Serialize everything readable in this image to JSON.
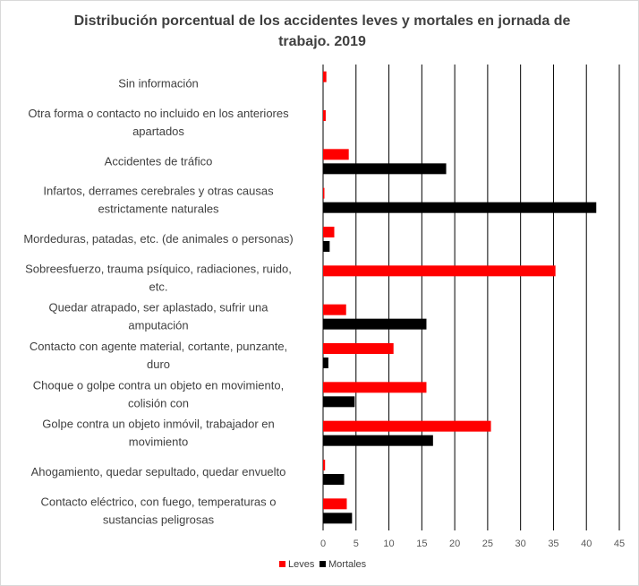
{
  "chart_data": {
    "type": "bar",
    "orientation": "horizontal",
    "title": "Distribución porcentual de los accidentes leves y mortales en jornada de trabajo. 2019",
    "categories": [
      [
        "Sin información"
      ],
      [
        "Otra forma o contacto no incluido en los anteriores",
        "apartados"
      ],
      [
        "Accidentes de tráfico"
      ],
      [
        "Infartos, derrames cerebrales y otras causas",
        "estrictamente naturales"
      ],
      [
        "Mordeduras, patadas, etc. (de animales o personas)"
      ],
      [
        "Sobreesfuerzo, trauma psíquico, radiaciones, ruido,",
        "etc."
      ],
      [
        "Quedar atrapado, ser aplastado, sufrir una",
        "amputación"
      ],
      [
        "Contacto con agente material, cortante, punzante,",
        "duro"
      ],
      [
        "Choque o golpe contra un objeto en movimiento,",
        "colisión con"
      ],
      [
        "Golpe contra un objeto inmóvil, trabajador en",
        "movimiento"
      ],
      [
        "Ahogamiento, quedar sepultado, quedar envuelto"
      ],
      [
        "Contacto eléctrico, con fuego, temperaturas o",
        "sustancias peligrosas"
      ]
    ],
    "series": [
      {
        "name": "Leves",
        "color": "#ff0000",
        "values": [
          0.5,
          0.4,
          3.9,
          0.2,
          1.7,
          35.3,
          3.5,
          10.7,
          15.7,
          25.5,
          0.3,
          3.6
        ]
      },
      {
        "name": "Mortales",
        "color": "#000000",
        "values": [
          0,
          0,
          18.7,
          41.5,
          1.0,
          0,
          15.7,
          0.8,
          4.8,
          16.7,
          3.2,
          4.4
        ]
      }
    ],
    "xlim": [
      0,
      45
    ],
    "xticks": [
      "0",
      "5",
      "10",
      "15",
      "20",
      "25",
      "30",
      "35",
      "40",
      "45"
    ],
    "grid": "vertical",
    "legend_position": "bottom"
  }
}
